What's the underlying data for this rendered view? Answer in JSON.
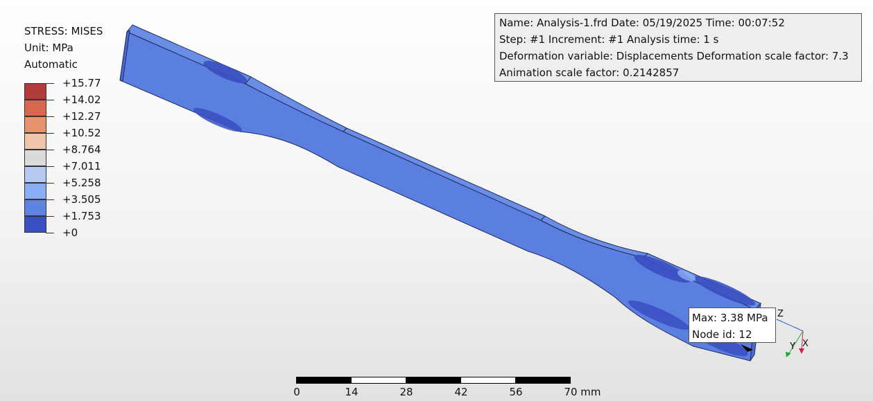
{
  "legend": {
    "title": "STRESS: MISES",
    "unit": "Unit: MPa",
    "mode": "Automatic",
    "labels": [
      "+15.77",
      "+14.02",
      "+12.27",
      "+10.52",
      "+8.764",
      "+7.011",
      "+5.258",
      "+3.505",
      "+1.753",
      "+0"
    ],
    "colors": [
      "#b53a3a",
      "#d9674e",
      "#e8926e",
      "#efc5aa",
      "#dadada",
      "#b6c9f3",
      "#8aaef5",
      "#5f83e2",
      "#3a4fc0"
    ]
  },
  "info": {
    "line1": "Name: Analysis-1.frd   Date: 05/19/2025   Time: 00:07:52",
    "line2": "Step: #1   Increment: #1   Analysis time: 1 s",
    "line3": "Deformation variable: Displacements   Deformation scale factor: 7.3",
    "line4": "Animation scale factor: 0.2142857"
  },
  "probe": {
    "max": "Max: 3.38 MPa",
    "node": "Node id: 12"
  },
  "scale_bar": {
    "labels": [
      "0",
      "14",
      "28",
      "42",
      "56",
      "70 mm"
    ]
  },
  "axes": {
    "x": "X",
    "y": "Y",
    "z": "Z",
    "x_color": "#cc2244",
    "y_color": "#22aa33",
    "z_color": "#3355cc"
  },
  "model": {
    "body_color": "#5b7fe0",
    "edge_color": "#1f2b5a",
    "low_color": "#3a4fc0"
  }
}
